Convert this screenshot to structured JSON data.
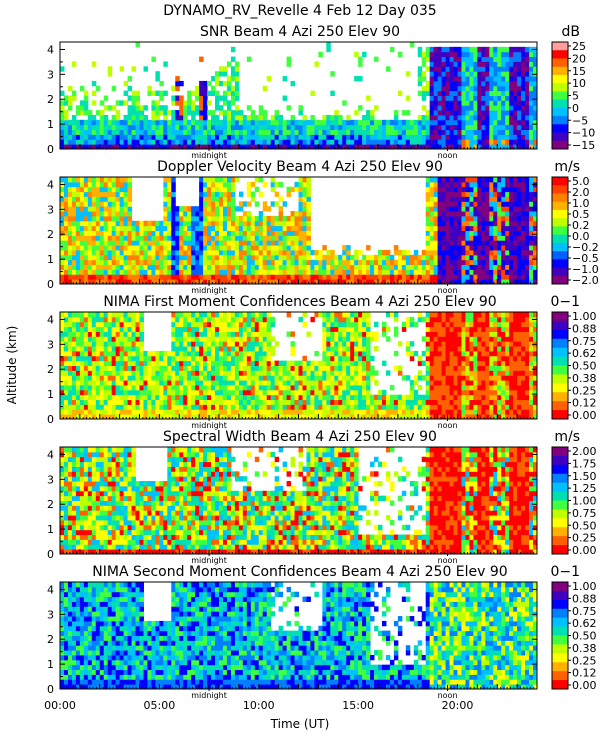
{
  "figure_title": "DYNAMO_RV_Revelle    4 Feb 12 Day 035",
  "chart_data": {
    "type": "heatmap",
    "xlabel": "Time (UT)",
    "ylabel": "Altitude (km)",
    "xlim": [
      0,
      24
    ],
    "ylim": [
      0,
      4.3
    ],
    "x_ticks": [
      {
        "v": 0,
        "label": "00:00"
      },
      {
        "v": 5,
        "label": "05:00"
      },
      {
        "v": 10,
        "label": "10:00"
      },
      {
        "v": 15,
        "label": "15:00"
      },
      {
        "v": 20,
        "label": "20:00"
      }
    ],
    "y_ticks": [
      "0",
      "1",
      "2",
      "3",
      "4"
    ],
    "markers": [
      {
        "v": 7.5,
        "label": "midnight"
      },
      {
        "v": 19.5,
        "label": "noon"
      }
    ],
    "panels": [
      {
        "title": "SNR Beam 4 Azi 250 Elev 90",
        "units": "dB",
        "kind": "snr",
        "colorbar": {
          "labels": [
            "25",
            "20",
            "15",
            "10",
            "5",
            "0",
            "−5",
            "−10",
            "−15"
          ],
          "colors": [
            "#ffa0a0",
            "#ff0000",
            "#ff6000",
            "#ffb000",
            "#ffff00",
            "#c0ff00",
            "#40ff40",
            "#00e0b0",
            "#00c0ff",
            "#0080ff",
            "#0000ff",
            "#4000c0",
            "#800080"
          ]
        }
      },
      {
        "title": "Doppler Velocity Beam 4 Azi 250 Elev 90",
        "units": "m/s",
        "kind": "vel",
        "colorbar": {
          "labels": [
            "5.0",
            "2.0",
            "1.0",
            "0.5",
            "0.2",
            "0.0",
            "−0.2",
            "−0.5",
            "−1.0",
            "−2.0"
          ],
          "colors": [
            "#ff0000",
            "#ff4000",
            "#ff8000",
            "#ffb000",
            "#ffff00",
            "#c0ff00",
            "#40ff40",
            "#00e0b0",
            "#00c0ff",
            "#0060ff",
            "#0000ff",
            "#4000c0",
            "#800080"
          ]
        }
      },
      {
        "title": "NIMA First Moment Confidences Beam 4 Azi 250 Elev 90",
        "units": "0−1",
        "kind": "conf1",
        "colorbar": {
          "labels": [
            "1.00",
            "0.88",
            "0.75",
            "0.62",
            "0.50",
            "0.38",
            "0.25",
            "0.12",
            "0.00"
          ],
          "colors": [
            "#800080",
            "#4000c0",
            "#0000ff",
            "#0080ff",
            "#00c0ff",
            "#00e0b0",
            "#40ff40",
            "#c0ff00",
            "#ffff00",
            "#ffb000",
            "#ff6000",
            "#ff0000"
          ]
        }
      },
      {
        "title": "Spectral Width Beam 4 Azi 250 Elev 90",
        "units": "m/s",
        "kind": "width",
        "colorbar": {
          "labels": [
            "2.00",
            "1.75",
            "1.50",
            "1.25",
            "1.00",
            "0.75",
            "0.50",
            "0.25",
            "0.00"
          ],
          "colors": [
            "#800080",
            "#4000c0",
            "#0000ff",
            "#0080ff",
            "#00c0ff",
            "#00e0b0",
            "#40ff40",
            "#c0ff00",
            "#ffff00",
            "#ffb000",
            "#ff6000",
            "#ff0000"
          ]
        }
      },
      {
        "title": "NIMA Second Moment Confidences Beam 4 Azi 250 Elev 90",
        "units": "0−1",
        "kind": "conf2",
        "colorbar": {
          "labels": [
            "1.00",
            "0.88",
            "0.75",
            "0.62",
            "0.50",
            "0.38",
            "0.25",
            "0.12",
            "0.00"
          ],
          "colors": [
            "#800080",
            "#4000c0",
            "#0000ff",
            "#0080ff",
            "#00c0ff",
            "#00e0b0",
            "#40ff40",
            "#c0ff00",
            "#ffff00",
            "#ffb000",
            "#ff6000",
            "#ff0000"
          ]
        }
      }
    ]
  }
}
